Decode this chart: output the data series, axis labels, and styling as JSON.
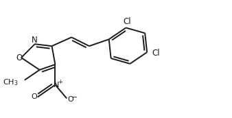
{
  "bg_color": "#ffffff",
  "line_color": "#1a1a1a",
  "line_width": 1.4,
  "font_size": 8.5,
  "figsize": [
    3.38,
    1.72
  ],
  "dpi": 100,
  "xlim": [
    0.0,
    3.38
  ],
  "ylim": [
    0.0,
    1.72
  ]
}
